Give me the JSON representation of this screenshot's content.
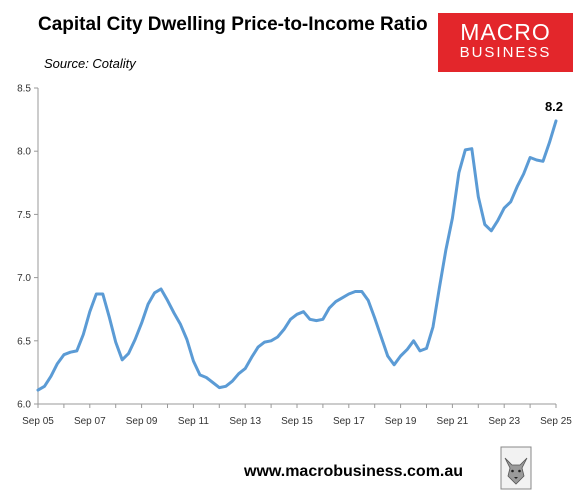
{
  "header": {
    "title": "Capital City Dwelling Price-to-Income Ratio",
    "subtitle": "Source: Cotality"
  },
  "logo": {
    "line1": "MACRO",
    "line2": "BUSINESS"
  },
  "footer": {
    "website": "www.macrobusiness.com.au"
  },
  "colors": {
    "line": "#5b9bd5",
    "logo_bg": "#e3262b"
  },
  "chart_data": {
    "type": "line",
    "title": "Capital City Dwelling Price-to-Income Ratio",
    "subtitle": "Source: Cotality",
    "xlabel": "",
    "ylabel": "",
    "ylim": [
      6.0,
      8.5
    ],
    "y_ticks": [
      "6.0",
      "6.5",
      "7.0",
      "7.5",
      "8.0",
      "8.5"
    ],
    "x_ticks": [
      "Sep 05",
      "Sep 07",
      "Sep 09",
      "Sep 11",
      "Sep 13",
      "Sep 15",
      "Sep 17",
      "Sep 19",
      "Sep 21",
      "Sep 23",
      "Sep 25"
    ],
    "grid": false,
    "legend": "none",
    "end_label": "8.2",
    "series": [
      {
        "frequency": "quarterly",
        "start": "Sep 05",
        "values": [
          6.11,
          6.14,
          6.22,
          6.32,
          6.39,
          6.41,
          6.42,
          6.55,
          6.73,
          6.87,
          6.87,
          6.69,
          6.49,
          6.35,
          6.4,
          6.51,
          6.64,
          6.79,
          6.88,
          6.91,
          6.82,
          6.72,
          6.63,
          6.51,
          6.34,
          6.23,
          6.21,
          6.17,
          6.13,
          6.14,
          6.18,
          6.24,
          6.28,
          6.37,
          6.45,
          6.49,
          6.5,
          6.53,
          6.59,
          6.67,
          6.71,
          6.73,
          6.67,
          6.66,
          6.67,
          6.76,
          6.81,
          6.84,
          6.87,
          6.89,
          6.89,
          6.82,
          6.68,
          6.53,
          6.38,
          6.31,
          6.38,
          6.43,
          6.5,
          6.42,
          6.44,
          6.61,
          6.92,
          7.22,
          7.47,
          7.83,
          8.01,
          8.02,
          7.64,
          7.42,
          7.37,
          7.45,
          7.55,
          7.6,
          7.72,
          7.82,
          7.95,
          7.93,
          7.92,
          8.07,
          8.24
        ]
      }
    ]
  }
}
